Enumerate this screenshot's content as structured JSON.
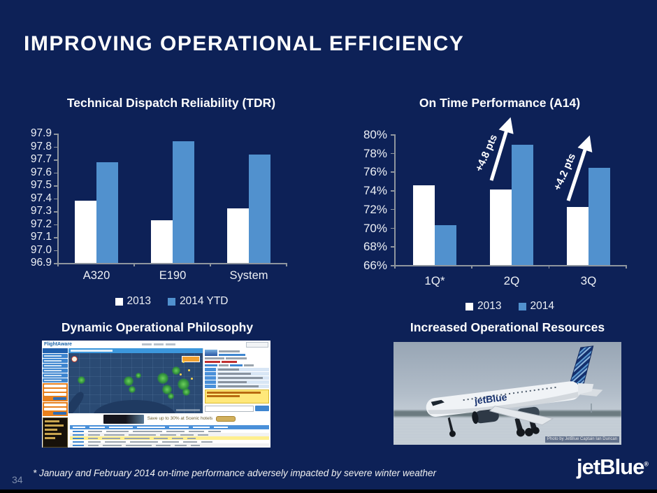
{
  "slide": {
    "title": "IMPROVING OPERATIONAL EFFICIENCY",
    "page_number": "34",
    "footnote": "* January and February 2014 on-time performance adversely impacted by severe winter weather",
    "logo_text": "jetBlue",
    "logo_reg_mark": "®"
  },
  "colors": {
    "background": "#0D2157",
    "bar_2013": "#FFFFFF",
    "bar_2014": "#5191CE",
    "axis": "#8E959E",
    "text": "#FFFFFF",
    "black_bar": "#000000"
  },
  "chart_data": [
    {
      "type": "bar",
      "title": "Technical Dispatch Reliability (TDR)",
      "categories": [
        "A320",
        "E190",
        "System"
      ],
      "series": [
        {
          "name": "2013",
          "color": "#FFFFFF",
          "values": [
            97.38,
            97.23,
            97.32
          ]
        },
        {
          "name": "2014 YTD",
          "color": "#5191CE",
          "values": [
            97.68,
            97.84,
            97.74
          ]
        }
      ],
      "xlabel": "",
      "ylabel": "",
      "ylim": [
        96.9,
        97.9
      ],
      "ytick_step": 0.1,
      "yticks": [
        "97.9",
        "97.8",
        "97.7",
        "97.6",
        "97.5",
        "97.4",
        "97.3",
        "97.2",
        "97.1",
        "97.0",
        "96.9"
      ],
      "grid": false,
      "legend_position": "bottom"
    },
    {
      "type": "bar",
      "title": "On Time Performance (A14)",
      "categories": [
        "1Q*",
        "2Q",
        "3Q"
      ],
      "series": [
        {
          "name": "2013",
          "color": "#FFFFFF",
          "values": [
            74.5,
            74.1,
            72.2
          ]
        },
        {
          "name": "2014",
          "color": "#5191CE",
          "values": [
            70.3,
            78.9,
            76.4
          ]
        }
      ],
      "xlabel": "",
      "ylabel": "",
      "ylim": [
        66,
        80
      ],
      "ytick_step": 2,
      "yticks": [
        "80%",
        "78%",
        "76%",
        "74%",
        "72%",
        "70%",
        "68%",
        "66%"
      ],
      "grid": false,
      "legend_position": "bottom",
      "annotations": [
        {
          "label": "+4.8 pts",
          "category": "2Q"
        },
        {
          "label": "+4.2 pts",
          "category": "3Q"
        }
      ]
    }
  ],
  "panels": {
    "dynamic_operational_philosophy": {
      "title": "Dynamic Operational Philosophy",
      "screenshot_brand": "FlightAware",
      "screenshot_banner": "Save up to 30% at Scenic hotels"
    },
    "increased_operational_resources": {
      "title": "Increased Operational Resources",
      "photo_caption": "Photo by JetBlue Captain Ian Duncan",
      "plane_livery_text": "jetBlue"
    }
  }
}
